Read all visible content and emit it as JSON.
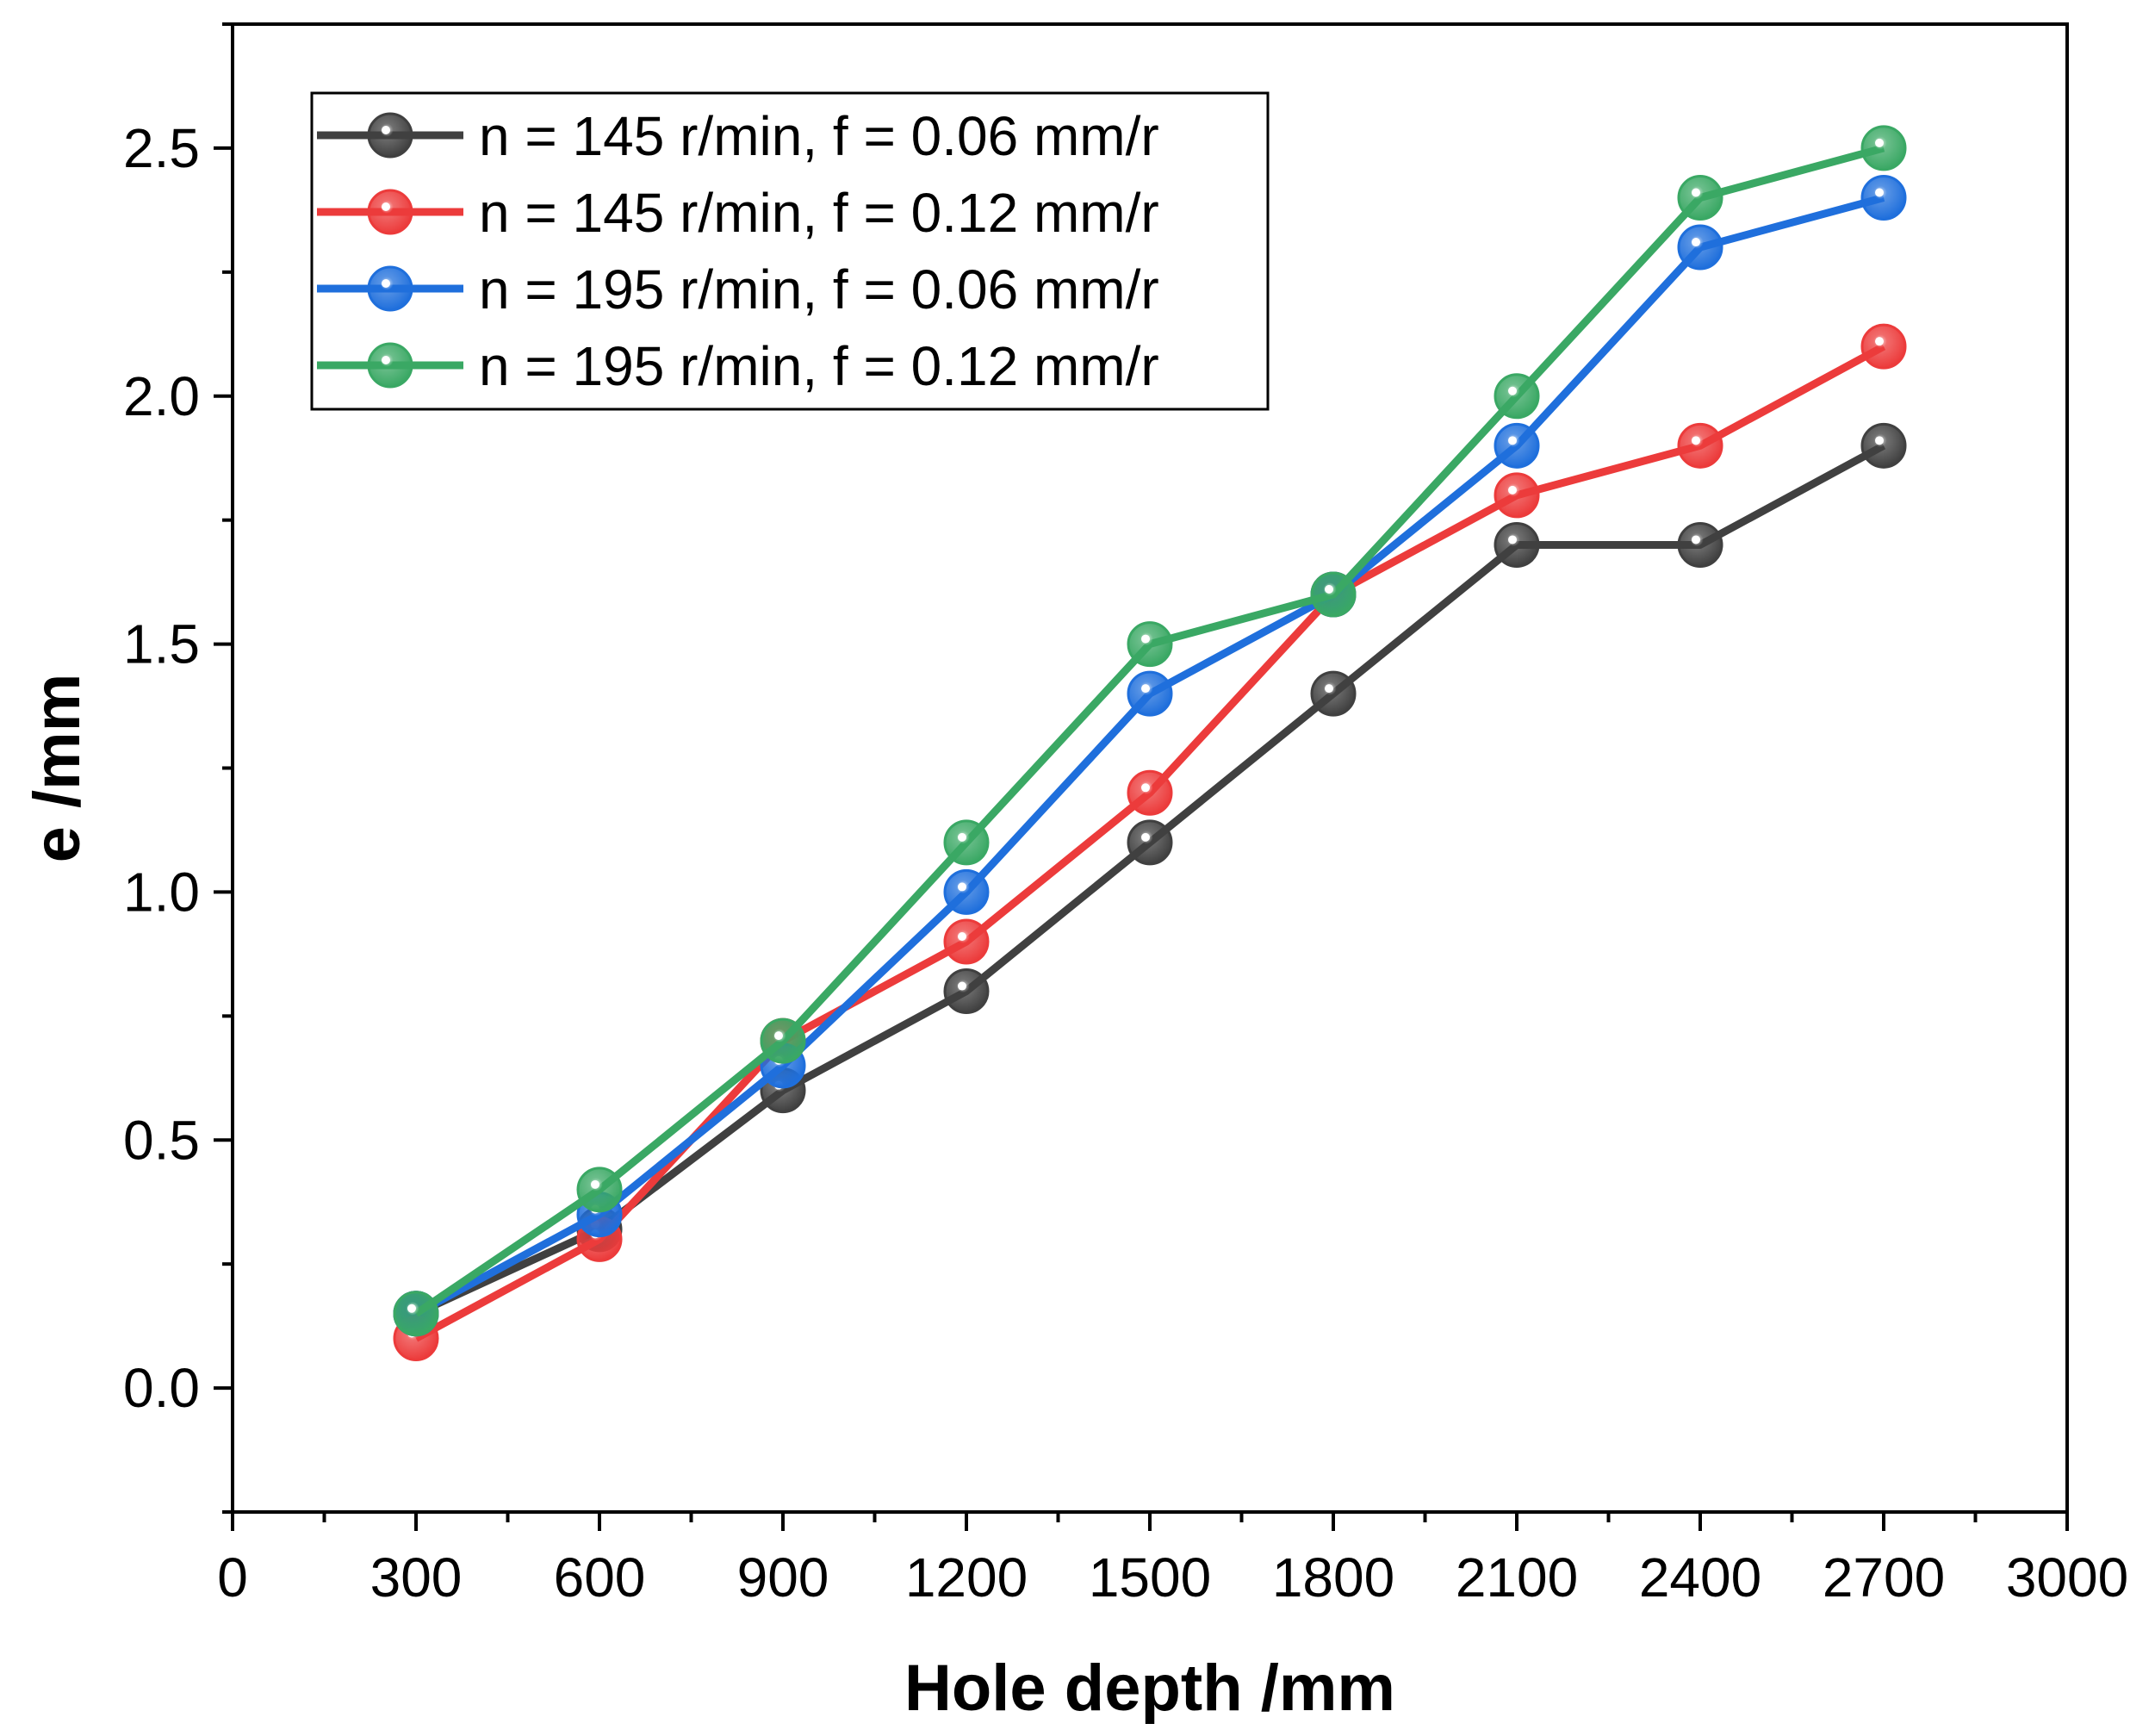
{
  "chart_data": {
    "type": "line",
    "title": "",
    "xlabel": "Hole depth /mm",
    "ylabel": "e /mm",
    "xlim": [
      0,
      3000
    ],
    "ylim": [
      -0.25,
      2.75
    ],
    "xticks": [
      0,
      300,
      600,
      900,
      1200,
      1500,
      1800,
      2100,
      2400,
      2700,
      3000
    ],
    "xtick_labels": [
      "0",
      "300",
      "600",
      "900",
      "1200",
      "1500",
      "1800",
      "2100",
      "2400",
      "2700",
      "3000"
    ],
    "yticks": [
      0.0,
      0.5,
      1.0,
      1.5,
      2.0,
      2.5
    ],
    "ytick_labels": [
      "0.0",
      "0.5",
      "1.0",
      "1.5",
      "2.0",
      "2.5"
    ],
    "grid": false,
    "legend_position": "top-left",
    "x": [
      300,
      600,
      900,
      1200,
      1500,
      1800,
      2100,
      2400,
      2700
    ],
    "series": [
      {
        "name": "n = 145 r/min, f = 0.06 mm/r",
        "color": "#404040",
        "values": [
          0.15,
          0.32,
          0.6,
          0.8,
          1.1,
          1.4,
          1.7,
          1.7,
          1.9
        ]
      },
      {
        "name": "n = 145 r/min, f = 0.12 mm/r",
        "color": "#ec3b3b",
        "values": [
          0.1,
          0.3,
          0.7,
          0.9,
          1.2,
          1.6,
          1.8,
          1.9,
          2.1
        ]
      },
      {
        "name": "n = 195 r/min, f = 0.06 mm/r",
        "color": "#1f6fdc",
        "values": [
          0.15,
          0.35,
          0.65,
          1.0,
          1.4,
          1.6,
          1.9,
          2.3,
          2.4
        ]
      },
      {
        "name": "n = 195 r/min, f = 0.12 mm/r",
        "color": "#3aa864",
        "values": [
          0.15,
          0.4,
          0.7,
          1.1,
          1.5,
          1.6,
          2.0,
          2.4,
          2.5
        ]
      }
    ]
  }
}
